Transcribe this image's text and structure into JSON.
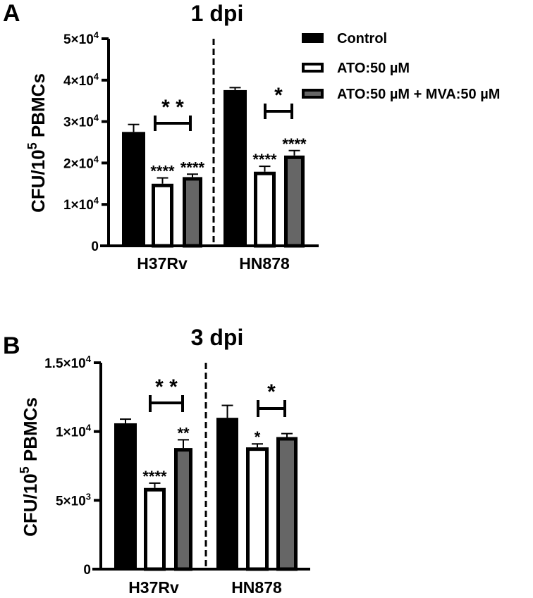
{
  "figure": {
    "panels": [
      {
        "letter": "A",
        "title": "1 dpi",
        "ylabel": "CFU/10",
        "ylabel_sup": "5",
        "ylabel_tail": " PBMCs",
        "yticks": [
          {
            "label": "0",
            "base": "0",
            "exp": ""
          },
          {
            "label": "1×10^4",
            "base": "1×10",
            "exp": "4"
          },
          {
            "label": "2×10^4",
            "base": "2×10",
            "exp": "4"
          },
          {
            "label": "3×10^4",
            "base": "3×10",
            "exp": "4"
          },
          {
            "label": "4×10^4",
            "base": "4×10",
            "exp": "4"
          },
          {
            "label": "5×10^4",
            "base": "5×10",
            "exp": "4"
          }
        ],
        "groups": [
          "H37Rv",
          "HN878"
        ]
      },
      {
        "letter": "B",
        "title": "3 dpi",
        "ylabel": "CFU/10",
        "ylabel_sup": "5",
        "ylabel_tail": " PBMCs",
        "yticks": [
          {
            "label": "0",
            "base": "0",
            "exp": ""
          },
          {
            "label": "5×10^3",
            "base": "5×10",
            "exp": "3"
          },
          {
            "label": "1×10^4",
            "base": "1×10",
            "exp": "4"
          },
          {
            "label": "1.5×10^4",
            "base": "1.5×10",
            "exp": "4"
          }
        ],
        "groups": [
          "H37Rv",
          "HN878"
        ]
      }
    ],
    "legend": [
      {
        "label": "Control",
        "fill": "#000000"
      },
      {
        "label": "ATO:50 µM",
        "fill": "#ffffff"
      },
      {
        "label": "ATO:50 µM + MVA:50 µM",
        "fill": "#666666"
      }
    ],
    "colors": {
      "control": "#000000",
      "ato": "#ffffff",
      "ato_mva": "#666666",
      "stroke": "#000000"
    }
  },
  "chart_data": [
    {
      "type": "bar",
      "title": "1 dpi",
      "panel": "A",
      "xlabel": "",
      "ylabel": "CFU/10^5 PBMCs",
      "categories": [
        "H37Rv",
        "HN878"
      ],
      "ylim": [
        0,
        50000
      ],
      "yticks": [
        0,
        10000,
        20000,
        30000,
        40000,
        50000
      ],
      "grid": false,
      "legend_position": "top-right",
      "series": [
        {
          "name": "Control",
          "values": [
            27500,
            37600
          ],
          "errors": [
            1800,
            600
          ],
          "significance_vs_control": [
            "",
            ""
          ]
        },
        {
          "name": "ATO:50 µM",
          "values": [
            15000,
            17900
          ],
          "errors": [
            1400,
            1300
          ],
          "significance_vs_control": [
            "****",
            "****"
          ]
        },
        {
          "name": "ATO:50 µM + MVA:50 µM",
          "values": [
            16600,
            21800
          ],
          "errors": [
            700,
            1200
          ],
          "significance_vs_control": [
            "****",
            "****"
          ]
        }
      ],
      "annotations": [
        {
          "group": "H37Rv",
          "between": [
            "ATO:50 µM",
            "ATO:50 µM + MVA:50 µM"
          ],
          "label": "**"
        },
        {
          "group": "HN878",
          "between": [
            "ATO:50 µM",
            "ATO:50 µM + MVA:50 µM"
          ],
          "label": "*"
        }
      ]
    },
    {
      "type": "bar",
      "title": "3 dpi",
      "panel": "B",
      "xlabel": "",
      "ylabel": "CFU/10^5 PBMCs",
      "categories": [
        "H37Rv",
        "HN878"
      ],
      "ylim": [
        0,
        15000
      ],
      "yticks": [
        0,
        5000,
        10000,
        15000
      ],
      "grid": false,
      "series": [
        {
          "name": "Control",
          "values": [
            10600,
            11000
          ],
          "errors": [
            300,
            900
          ],
          "significance_vs_control": [
            "",
            ""
          ]
        },
        {
          "name": "ATO:50 µM",
          "values": [
            5900,
            8850
          ],
          "errors": [
            350,
            250
          ],
          "significance_vs_control": [
            "****",
            "*"
          ]
        },
        {
          "name": "ATO:50 µM + MVA:50 µM",
          "values": [
            8800,
            9600
          ],
          "errors": [
            600,
            250
          ],
          "significance_vs_control": [
            "**",
            ""
          ]
        }
      ],
      "annotations": [
        {
          "group": "H37Rv",
          "between": [
            "ATO:50 µM",
            "ATO:50 µM + MVA:50 µM"
          ],
          "label": "**"
        },
        {
          "group": "HN878",
          "between": [
            "ATO:50 µM",
            "ATO:50 µM + MVA:50 µM"
          ],
          "label": "*"
        }
      ]
    }
  ]
}
